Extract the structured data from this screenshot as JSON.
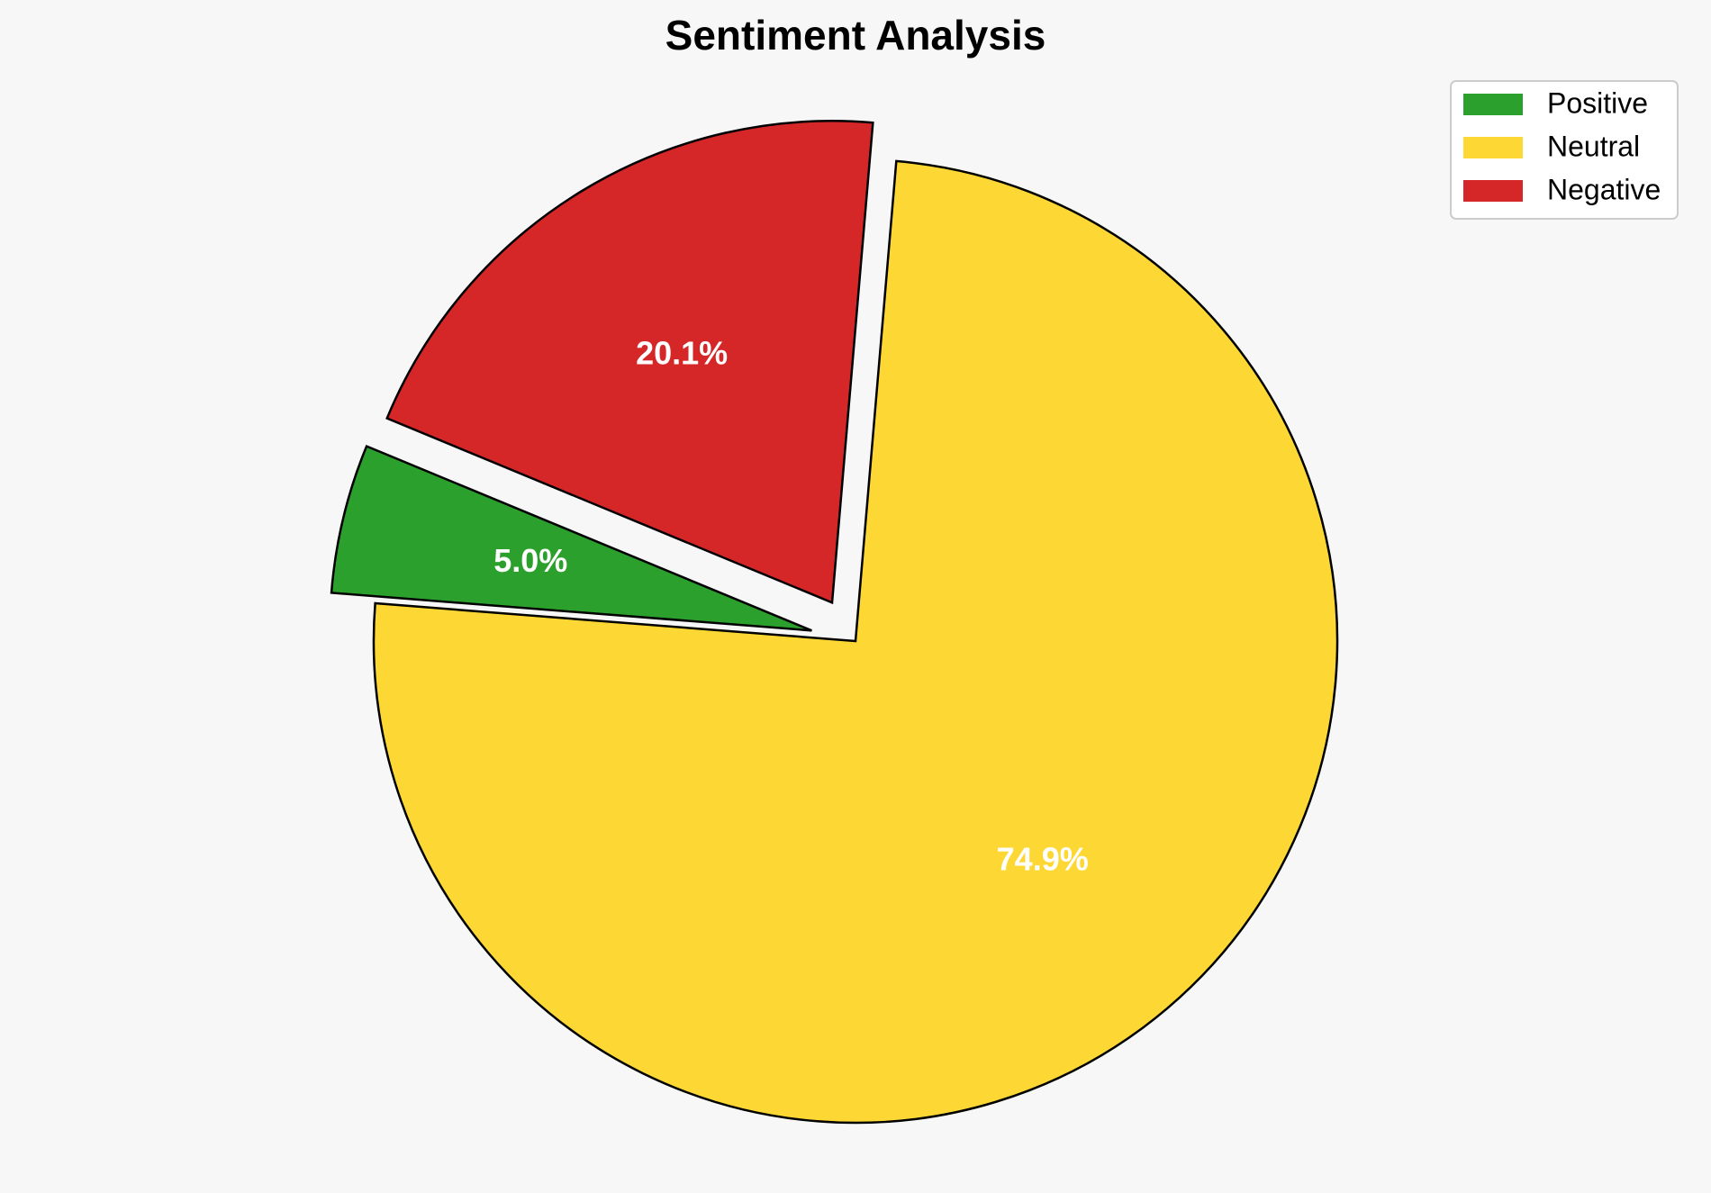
{
  "chart_data": {
    "type": "pie",
    "title": "Sentiment Analysis",
    "categories": [
      "Positive",
      "Neutral",
      "Negative"
    ],
    "values": [
      5.0,
      74.9,
      20.1
    ],
    "labels": [
      "5.0%",
      "74.9%",
      "20.1%"
    ],
    "colors": [
      "#2ca02c",
      "#fdd835",
      "#d62728"
    ],
    "exploded": [
      true,
      false,
      true
    ],
    "start_angle_deg": 157.5,
    "direction": "counterclockwise",
    "legend": {
      "placement": "top-right",
      "entries": [
        "Positive",
        "Neutral",
        "Negative"
      ]
    }
  }
}
